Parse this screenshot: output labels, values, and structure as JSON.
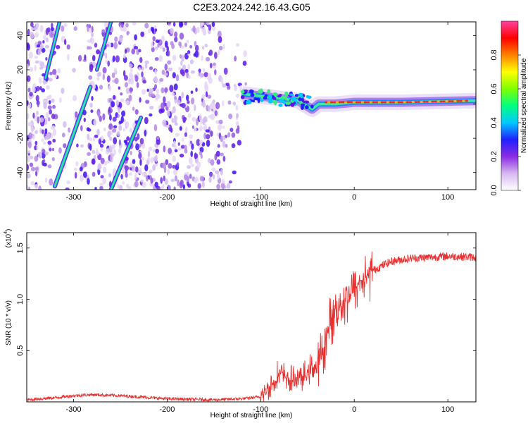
{
  "title": "C2E3.2024.242.16.43.G05",
  "chart_data": [
    {
      "type": "heatmap",
      "xlabel": "Height of straight line (km)",
      "ylabel": "Frequency (Hz)",
      "xlim": [
        -350,
        130
      ],
      "ylim": [
        -50,
        48
      ],
      "x_ticks": [
        -300,
        -200,
        -100,
        0,
        100
      ],
      "y_ticks": [
        -40,
        -20,
        0,
        20,
        40
      ],
      "colorbar": {
        "label": "Normalized spectral amplitude",
        "range": [
          0,
          1
        ],
        "ticks": [
          "0.0",
          "0.2",
          "0.4",
          "0.6",
          "0.8"
        ],
        "colors": [
          "#ffffff",
          "#d8b8f0",
          "#8a2be2",
          "#2020ff",
          "#00c8ff",
          "#00ff80",
          "#80ff00",
          "#ffff00",
          "#ff8000",
          "#ff0000",
          "#ff40a0"
        ]
      },
      "features": {
        "streak_1": [
          [
            -320,
            -48
          ],
          [
            -282,
            10
          ]
        ],
        "streak_2": [
          [
            -260,
            -50
          ],
          [
            -228,
            -8
          ]
        ],
        "streak_3_upper": [
          [
            -330,
            15
          ],
          [
            -315,
            48
          ]
        ],
        "streak_4_upper": [
          [
            -275,
            20
          ],
          [
            -260,
            48
          ]
        ],
        "noise_region_x": [
          -350,
          -112
        ],
        "central_band": [
          [
            -120,
            6
          ],
          [
            -90,
            4
          ],
          [
            -60,
            2
          ],
          [
            -45,
            -3
          ],
          [
            -38,
            0
          ],
          [
            -20,
            0
          ],
          [
            0,
            1
          ],
          [
            50,
            1
          ],
          [
            130,
            2
          ]
        ]
      }
    },
    {
      "type": "line",
      "xlabel": "Height of straight line (km)",
      "ylabel": "SNR (10 * v/v)",
      "y_multiplier": "(x10",
      "y_multiplier_exp": "4",
      "xlim": [
        -350,
        130
      ],
      "ylim": [
        0,
        1.65
      ],
      "x_ticks": [
        -300,
        -200,
        -100,
        0,
        100
      ],
      "y_ticks": [
        0.5,
        1.0,
        1.5
      ],
      "y_tick_labels": [
        "0.5",
        "1.0",
        "1.5"
      ],
      "color": "#e83030",
      "x": [
        -350,
        -320,
        -300,
        -280,
        -250,
        -200,
        -150,
        -120,
        -100,
        -95,
        -90,
        -85,
        -80,
        -75,
        -70,
        -65,
        -60,
        -55,
        -50,
        -45,
        -40,
        -35,
        -30,
        -25,
        -20,
        -15,
        -10,
        -5,
        0,
        10,
        20,
        30,
        40,
        60,
        80,
        100,
        130
      ],
      "y": [
        0.02,
        0.04,
        0.06,
        0.07,
        0.06,
        0.03,
        0.02,
        0.03,
        0.05,
        0.1,
        0.15,
        0.2,
        0.28,
        0.25,
        0.22,
        0.2,
        0.25,
        0.22,
        0.28,
        0.35,
        0.32,
        0.45,
        0.6,
        0.8,
        0.9,
        0.95,
        1.0,
        1.05,
        1.1,
        1.2,
        1.28,
        1.33,
        1.37,
        1.4,
        1.41,
        1.42,
        1.41
      ]
    }
  ]
}
